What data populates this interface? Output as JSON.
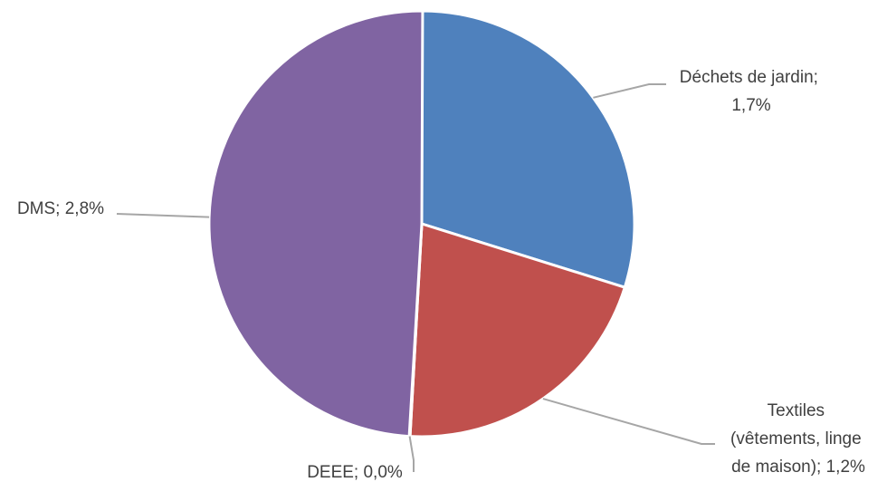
{
  "chart_data": {
    "type": "pie",
    "title": "",
    "start": "top, clockwise",
    "slices": [
      {
        "label": "Déchets de jardin",
        "value": 1.7,
        "value_text": "1,7%",
        "color": "#4f81bd",
        "label_lines": [
          "Déchets de jardin;",
          "1,7%"
        ]
      },
      {
        "label": "Textiles (vêtements, linge de maison)",
        "value": 1.2,
        "value_text": "1,2%",
        "color": "#c0504d",
        "label_lines": [
          "Textiles",
          "(vêtements, linge",
          "de maison); 1,2%"
        ]
      },
      {
        "label": "DEEE",
        "value": 0.0,
        "value_text": "0,0%",
        "color": "#9bbb59",
        "label_lines": [
          "DEEE; 0,0%"
        ]
      },
      {
        "label": "DMS",
        "value": 2.8,
        "value_text": "2,8%",
        "color": "#8064a2",
        "label_lines": [
          "DMS; 2,8%"
        ]
      }
    ],
    "legend": "none (data labels with leader lines)"
  }
}
